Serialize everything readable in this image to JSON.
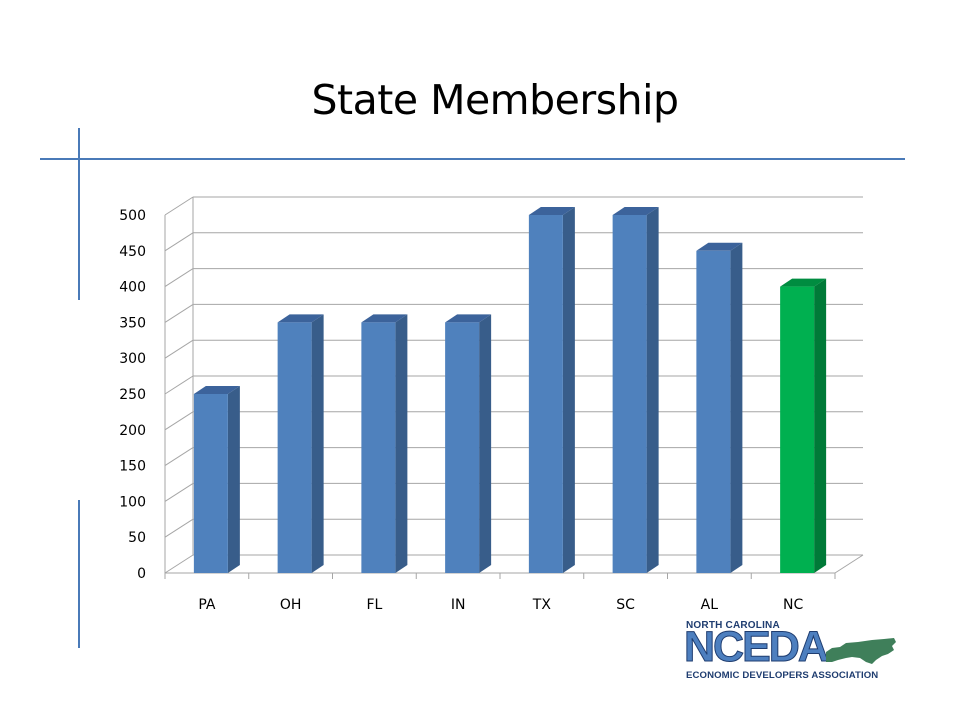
{
  "slide": {
    "title": "State Membership"
  },
  "chart_data": {
    "type": "bar",
    "categories": [
      "PA",
      "OH",
      "FL",
      "IN",
      "TX",
      "SC",
      "AL",
      "NC"
    ],
    "values": [
      250,
      350,
      350,
      350,
      500,
      500,
      450,
      400
    ],
    "title": "",
    "xlabel": "",
    "ylabel": "",
    "ylim": [
      0,
      500
    ],
    "yticks": [
      0,
      50,
      100,
      150,
      200,
      250,
      300,
      350,
      400,
      450,
      500
    ],
    "grid": true,
    "style": "3d-column",
    "colors": {
      "default": "#4f81bd",
      "default_side": "#385d8a",
      "default_top": "#3c639b",
      "highlight": "#00b050",
      "highlight_side": "#007a38",
      "highlight_top": "#008c40",
      "highlight_category": "NC",
      "grid": "#a6a6a6"
    }
  },
  "logo": {
    "top_text": "NORTH CAROLINA",
    "main_text": "NCEDA",
    "bottom_text": "ECONOMIC DEVELOPERS ASSOCIATION",
    "color_dark": "#1f3d70",
    "color_light": "#4d7fbf",
    "state_color": "#3f7f5a"
  }
}
